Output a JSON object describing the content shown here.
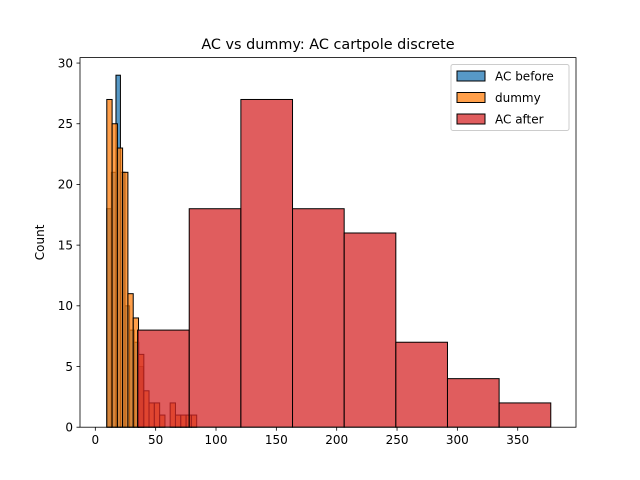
{
  "chart_data": {
    "type": "bar",
    "title": "AC vs dummy: AC cartpole discrete",
    "xlabel": "",
    "ylabel": "Count",
    "xlim": [
      -12.7,
      398.3
    ],
    "ylim": [
      0,
      30.45
    ],
    "xticks": [
      0,
      50,
      100,
      150,
      200,
      250,
      300,
      350
    ],
    "yticks": [
      0,
      5,
      10,
      15,
      20,
      25,
      30
    ],
    "grid": false,
    "legend_position": "top-right",
    "series": [
      {
        "name": "AC before",
        "color": "#1f77b4",
        "bins": [
          {
            "x0": 9.5,
            "x1": 13.3,
            "count": 18
          },
          {
            "x0": 13.3,
            "x1": 17.1,
            "count": 21
          },
          {
            "x0": 17.1,
            "x1": 20.8,
            "count": 29
          },
          {
            "x0": 20.8,
            "x1": 24.6,
            "count": 21
          },
          {
            "x0": 24.6,
            "x1": 28.4,
            "count": 10
          },
          {
            "x0": 28.4,
            "x1": 32.2,
            "count": 8
          },
          {
            "x0": 32.2,
            "x1": 36.0,
            "count": 7
          },
          {
            "x0": 36.0,
            "x1": 39.8,
            "count": 5
          }
        ]
      },
      {
        "name": "dummy",
        "color": "#ff7f0e",
        "bins": [
          {
            "x0": 9.5,
            "x1": 13.9,
            "count": 27
          },
          {
            "x0": 13.9,
            "x1": 18.3,
            "count": 25
          },
          {
            "x0": 18.3,
            "x1": 22.6,
            "count": 23
          },
          {
            "x0": 22.6,
            "x1": 27.0,
            "count": 21
          },
          {
            "x0": 27.0,
            "x1": 31.4,
            "count": 11
          },
          {
            "x0": 31.4,
            "x1": 35.8,
            "count": 9
          },
          {
            "x0": 35.8,
            "x1": 40.2,
            "count": 6
          },
          {
            "x0": 40.2,
            "x1": 44.5,
            "count": 3
          },
          {
            "x0": 44.5,
            "x1": 48.9,
            "count": 2
          },
          {
            "x0": 48.9,
            "x1": 53.3,
            "count": 2
          },
          {
            "x0": 53.3,
            "x1": 57.7,
            "count": 1
          },
          {
            "x0": 57.7,
            "x1": 62.0,
            "count": 0
          },
          {
            "x0": 62.0,
            "x1": 66.4,
            "count": 2
          },
          {
            "x0": 66.4,
            "x1": 70.8,
            "count": 1
          },
          {
            "x0": 70.8,
            "x1": 75.2,
            "count": 1
          },
          {
            "x0": 75.2,
            "x1": 79.6,
            "count": 1
          },
          {
            "x0": 79.6,
            "x1": 84.0,
            "count": 1
          }
        ]
      },
      {
        "name": "AC after",
        "color": "#d62728",
        "bins": [
          {
            "x0": 35.0,
            "x1": 77.8,
            "count": 8
          },
          {
            "x0": 77.8,
            "x1": 120.6,
            "count": 18
          },
          {
            "x0": 120.6,
            "x1": 163.4,
            "count": 27
          },
          {
            "x0": 163.4,
            "x1": 206.2,
            "count": 18
          },
          {
            "x0": 206.2,
            "x1": 249.0,
            "count": 16
          },
          {
            "x0": 249.0,
            "x1": 291.8,
            "count": 7
          },
          {
            "x0": 291.8,
            "x1": 334.6,
            "count": 4
          },
          {
            "x0": 334.6,
            "x1": 377.4,
            "count": 2
          }
        ]
      }
    ]
  }
}
